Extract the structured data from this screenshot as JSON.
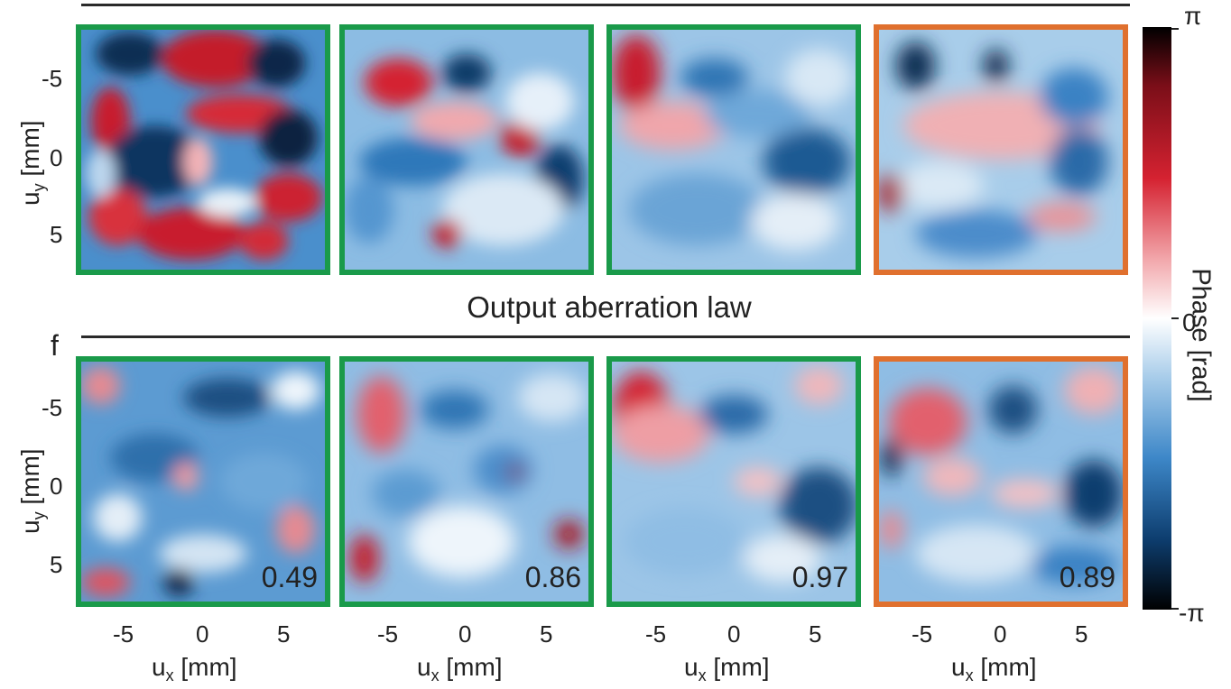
{
  "row_title": "Output aberration law",
  "panel_letter": "f",
  "y_axis_label": "u",
  "y_axis_sub": "y",
  "y_axis_unit": " [mm]",
  "x_axis_label": "u",
  "x_axis_sub": "x",
  "x_axis_unit": " [mm]",
  "y_ticks": [
    "-5",
    "0",
    "5"
  ],
  "x_ticks": [
    "-5",
    "0",
    "5"
  ],
  "bottom_values": [
    "0.49",
    "0.86",
    "0.97",
    "0.89"
  ],
  "colorbar": {
    "max_label": "π",
    "mid_label": "0",
    "min_label": "-π",
    "title": "Phase [rad]"
  },
  "colors": {
    "green_frame": "#1a9a4a",
    "orange_frame": "#e0702e",
    "positive": "#d52231",
    "negative": "#0d3d6e"
  }
}
